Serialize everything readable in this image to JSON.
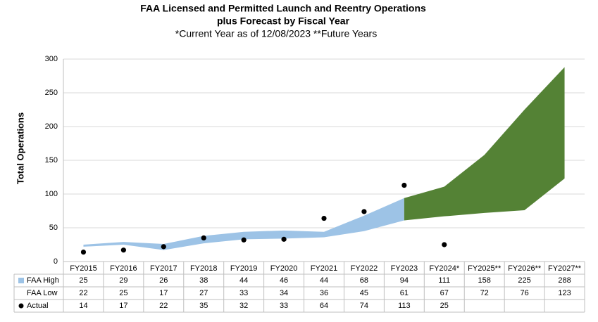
{
  "chart_data": {
    "type": "band",
    "title": "FAA Licensed and Permitted Launch and Reentry Operations",
    "subtitle": "plus Forecast by Fiscal Year",
    "note": "*Current Year as of 12/08/2023  **Future Years",
    "y_label": "Total Operations",
    "categories": [
      "FY2015",
      "FY2016",
      "FY2017",
      "FY2018",
      "FY2019",
      "FY2020",
      "FY2021",
      "FY2022",
      "FY2023",
      "FY2024*",
      "FY2025**",
      "FY2026**",
      "FY2027**"
    ],
    "series": [
      {
        "name": "FAA High",
        "color": "#9dc3e6",
        "values": [
          25,
          29,
          26,
          38,
          44,
          46,
          44,
          68,
          94,
          111,
          158,
          225,
          288
        ]
      },
      {
        "name": "FAA Low",
        "values": [
          22,
          25,
          17,
          27,
          33,
          34,
          36,
          45,
          61,
          67,
          72,
          76,
          123
        ]
      },
      {
        "name": "Actual",
        "color": "#000000",
        "values": [
          14,
          17,
          22,
          35,
          32,
          33,
          64,
          74,
          113,
          25,
          null,
          null,
          null
        ]
      }
    ],
    "forecast_color": "#548235",
    "ylim": [
      0,
      300
    ],
    "yticks": [
      0,
      50,
      100,
      150,
      200,
      250,
      300
    ],
    "grid": true
  }
}
